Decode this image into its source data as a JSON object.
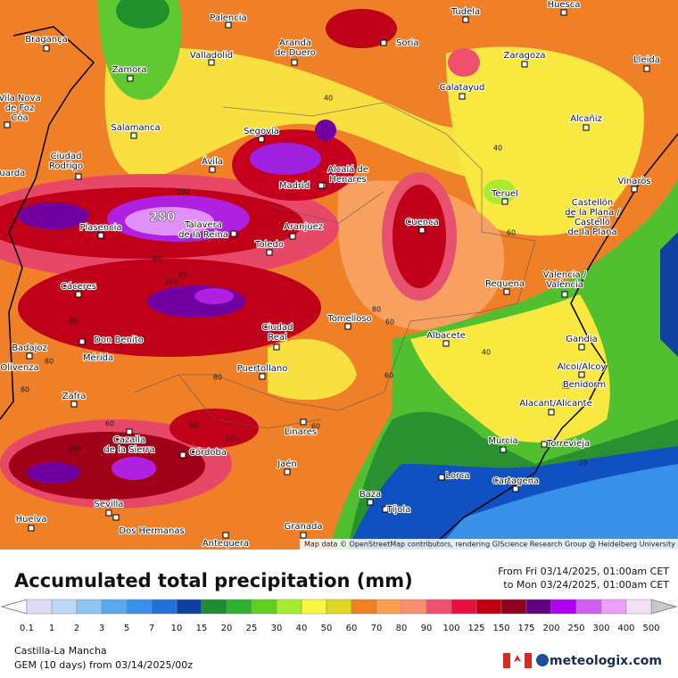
{
  "header": {
    "attribution": "Map data © OpenStreetMap contributors, rendering GIScience Research Group @ Heidelberg University"
  },
  "cities": [
    [
      "Palencia"
    ],
    [
      "Tudela"
    ],
    [
      "Huesca"
    ],
    [
      "Bragança"
    ],
    [
      "Soria"
    ],
    [
      "Aranda",
      "de Duero"
    ],
    [
      "Valladolid"
    ],
    [
      "Zaragoza"
    ],
    [
      "Lleida"
    ],
    [
      "Zamora"
    ],
    [
      "Calatayud"
    ],
    [
      "Vila Nova",
      "de Foz",
      "Côa"
    ],
    [
      "Alcañiz"
    ],
    [
      "Salamanca"
    ],
    [
      "Segovia"
    ],
    [
      "Ciudad",
      "Rodrigo"
    ],
    [
      "Ávila"
    ],
    [
      "Guarda"
    ],
    [
      "Alcalá de",
      "Henares"
    ],
    [
      "Madrid"
    ],
    [
      "Teruel"
    ],
    [
      "Vinaròs"
    ],
    [
      "Castellón",
      "de la Plana /",
      "Castelló",
      "de la Plana"
    ],
    [
      "Plasencia"
    ],
    [
      "Talavera",
      "de la Reina"
    ],
    [
      "Aranjuez"
    ],
    [
      "Cuenca"
    ],
    [
      "Toledo"
    ],
    [
      "Cáceres"
    ],
    [
      "Requena"
    ],
    [
      "Valencia /",
      "València"
    ],
    [
      "Tomelloso"
    ],
    [
      "Ciudad",
      "Real"
    ],
    [
      "Albacete"
    ],
    [
      "Gandia"
    ],
    [
      "Badajoz"
    ],
    [
      "Don Benito"
    ],
    [
      "Mérida"
    ],
    [
      "Olivenza"
    ],
    [
      "Alcoi/Alcoy"
    ],
    [
      "Puertollano"
    ],
    [
      "Benidorm"
    ],
    [
      "Zafra"
    ],
    [
      "Alacant/Alicante"
    ],
    [
      "Linares"
    ],
    [
      "Murcia"
    ],
    [
      "Torrevieja"
    ],
    [
      "Cazalla",
      "de la Sierra"
    ],
    [
      "Córdoba"
    ],
    [
      "Jaén"
    ],
    [
      "Lorca"
    ],
    [
      "Cartagena"
    ],
    [
      "Baza"
    ],
    [
      "Sevilla"
    ],
    [
      "Tíjola"
    ],
    [
      "Huelva"
    ],
    [
      "Dos Hermanas"
    ],
    [
      "Granada"
    ],
    [
      "Antequera"
    ]
  ],
  "contour_labels": [
    "280",
    "100",
    "80",
    "80",
    "100",
    "80",
    "80",
    "80",
    "80",
    "60",
    "80",
    "100",
    "100",
    "60",
    "80",
    "60",
    "60",
    "40",
    "40",
    "40",
    "60",
    "20"
  ],
  "footer": {
    "title": "Accumulated total precipitation (mm)",
    "period_from": "From Fri 03/14/2025, 01:00am CET",
    "period_to": "to Mon 03/24/2025, 01:00am CET",
    "region": "Castilla-La Mancha",
    "model": "GEM (10 days) from 03/14/2025/00z",
    "brand": "meteologix.com"
  },
  "legend": {
    "ticks": [
      0.1,
      1,
      2,
      3,
      5,
      7,
      10,
      15,
      20,
      25,
      30,
      40,
      50,
      60,
      70,
      80,
      90,
      100,
      125,
      150,
      175,
      200,
      250,
      300,
      400,
      500
    ],
    "colors": [
      "#dcdcf4",
      "#bcd8f8",
      "#90c4f4",
      "#5ca8f0",
      "#3890e8",
      "#2070d8",
      "#1040a0",
      "#208a30",
      "#30b030",
      "#60d020",
      "#a8ec30",
      "#f8f840",
      "#e0d820",
      "#f08020",
      "#f8a050",
      "#f89070",
      "#f05070",
      "#e81040",
      "#c00010",
      "#900020",
      "#600080",
      "#b000f0",
      "#d060f0",
      "#e8a0f8",
      "#f4e0f8"
    ]
  }
}
